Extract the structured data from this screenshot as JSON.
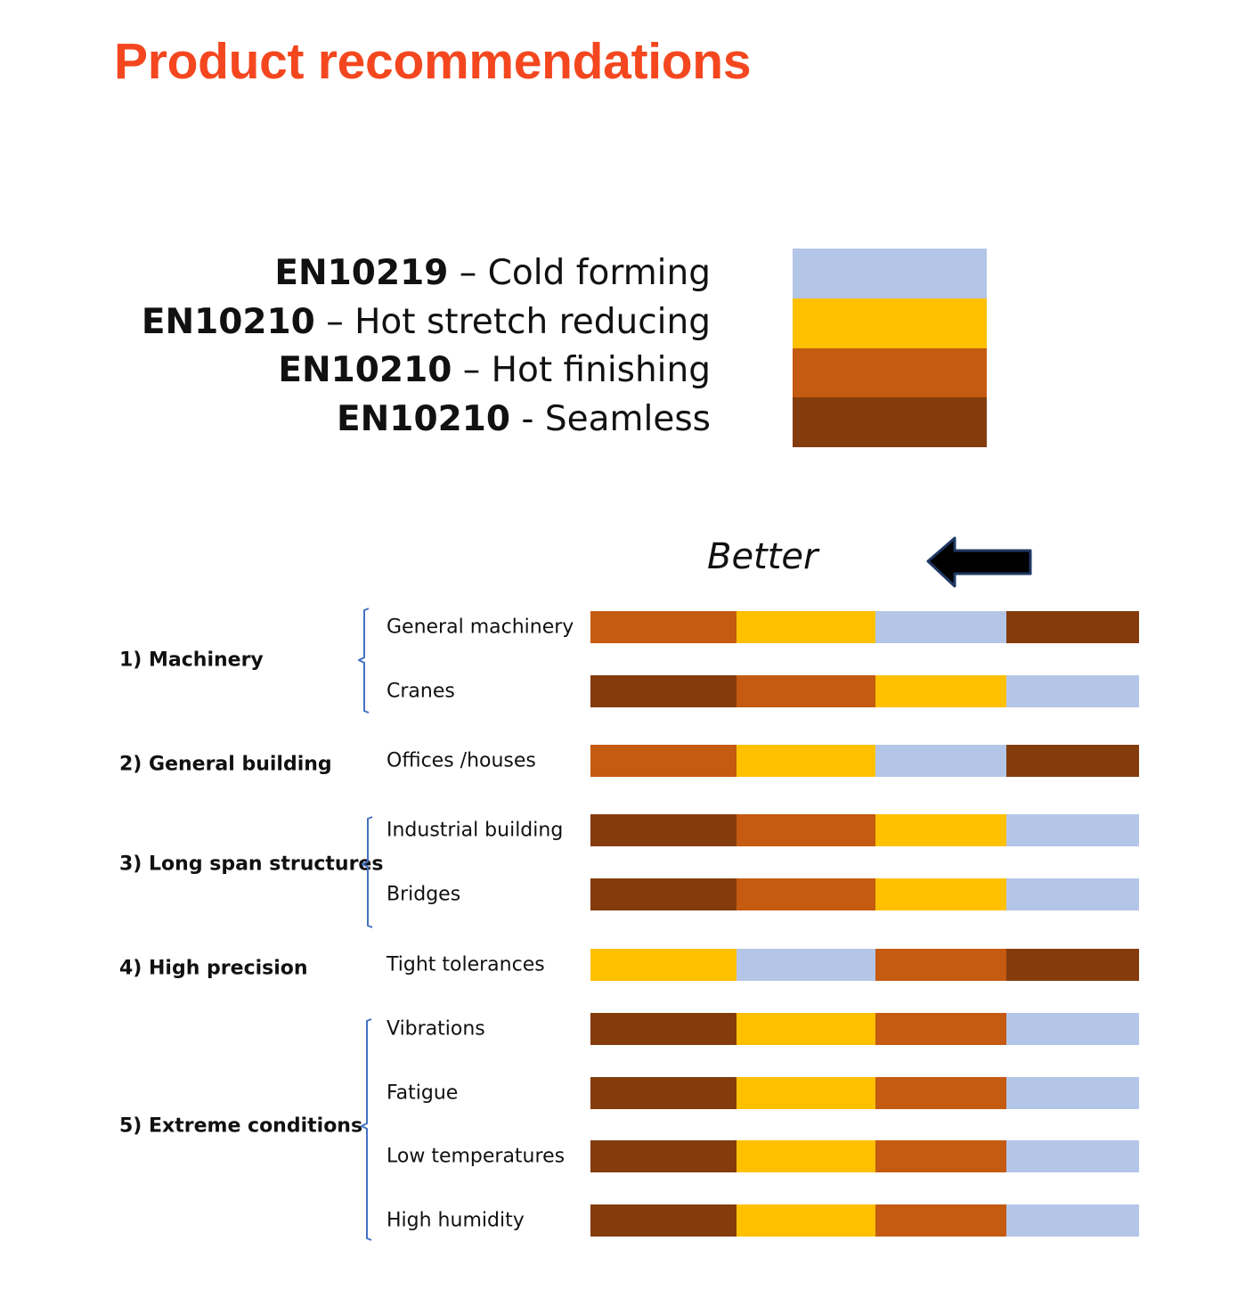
{
  "title": "Product recommendations",
  "legend": [
    {
      "code": "EN10219",
      "sep": "–",
      "label": "Cold forming",
      "color_key": "cold_forming"
    },
    {
      "code": "EN10210",
      "sep": "–",
      "label": "Hot stretch reducing",
      "color_key": "hot_stretch"
    },
    {
      "code": "EN10210",
      "sep": "–",
      "label": "Hot finishing",
      "color_key": "hot_finishing"
    },
    {
      "code": "EN10210",
      "sep": "-",
      "label": "Seamless",
      "color_key": "seamless"
    }
  ],
  "colors": {
    "cold_forming": "#b4c6e7",
    "hot_stretch": "#ffc000",
    "hot_finishing": "#c55a11",
    "seamless": "#843c0c",
    "title": "#f4471f",
    "brace": "#4472c4"
  },
  "better_label": "Better",
  "categories": [
    {
      "label": "1) Machinery",
      "rows": [
        {
          "label": "General machinery",
          "order": [
            "hot_finishing",
            "hot_stretch",
            "cold_forming",
            "seamless"
          ]
        },
        {
          "label": "Cranes",
          "order": [
            "seamless",
            "hot_finishing",
            "hot_stretch",
            "cold_forming"
          ]
        }
      ]
    },
    {
      "label": "2) General building",
      "rows": [
        {
          "label": "Offices /houses",
          "order": [
            "hot_finishing",
            "hot_stretch",
            "cold_forming",
            "seamless"
          ]
        }
      ]
    },
    {
      "label": "3) Long span structures",
      "rows": [
        {
          "label": "Industrial building",
          "order": [
            "seamless",
            "hot_finishing",
            "hot_stretch",
            "cold_forming"
          ]
        },
        {
          "label": "Bridges",
          "order": [
            "seamless",
            "hot_finishing",
            "hot_stretch",
            "cold_forming"
          ]
        }
      ]
    },
    {
      "label": "4) High precision",
      "rows": [
        {
          "label": "Tight tolerances",
          "order": [
            "hot_stretch",
            "cold_forming",
            "hot_finishing",
            "seamless"
          ]
        }
      ]
    },
    {
      "label": "5) Extreme conditions",
      "rows": [
        {
          "label": "Vibrations",
          "order": [
            "seamless",
            "hot_stretch",
            "hot_finishing",
            "cold_forming"
          ]
        },
        {
          "label": "Fatigue",
          "order": [
            "seamless",
            "hot_stretch",
            "hot_finishing",
            "cold_forming"
          ]
        },
        {
          "label": "Low temperatures",
          "order": [
            "seamless",
            "hot_stretch",
            "hot_finishing",
            "cold_forming"
          ]
        },
        {
          "label": "High humidity",
          "order": [
            "seamless",
            "hot_stretch",
            "hot_finishing",
            "cold_forming"
          ]
        }
      ]
    }
  ]
}
